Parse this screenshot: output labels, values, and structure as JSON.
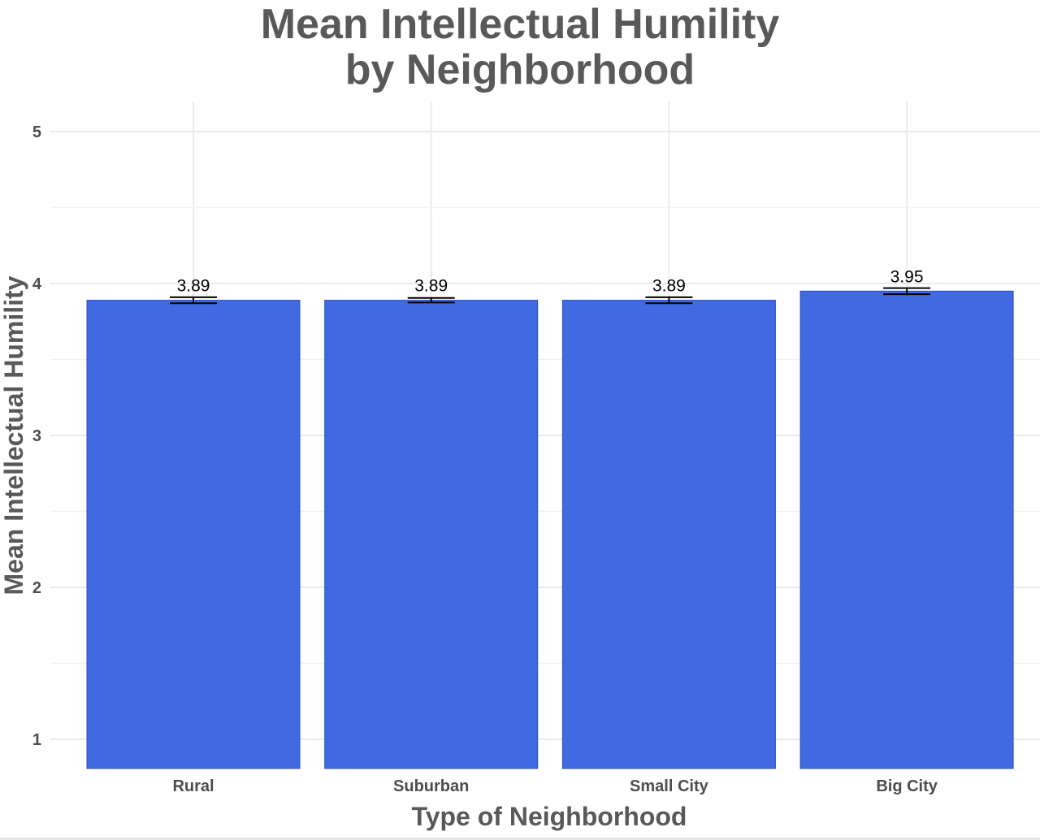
{
  "chart_data": {
    "type": "bar",
    "title": "Mean Intellectual Humility\nby Neighborhood",
    "title_lines": [
      "Mean Intellectual Humility",
      "by Neighborhood"
    ],
    "xlabel": "Type of Neighborhood",
    "ylabel": "Mean Intellectual Humility",
    "categories": [
      "Rural",
      "Suburban",
      "Small City",
      "Big City"
    ],
    "values": [
      3.89,
      3.89,
      3.89,
      3.95
    ],
    "value_labels": [
      "3.89",
      "3.89",
      "3.89",
      "3.95"
    ],
    "error_bars": [
      0.02,
      0.015,
      0.02,
      0.02
    ],
    "yticks": [
      1,
      2,
      3,
      4,
      5
    ],
    "ytick_labels": [
      "1",
      "2",
      "3",
      "4",
      "5"
    ],
    "ylim": [
      0.8,
      5.2
    ],
    "grid": true,
    "legend": null,
    "bar_color": "#4169E1"
  }
}
